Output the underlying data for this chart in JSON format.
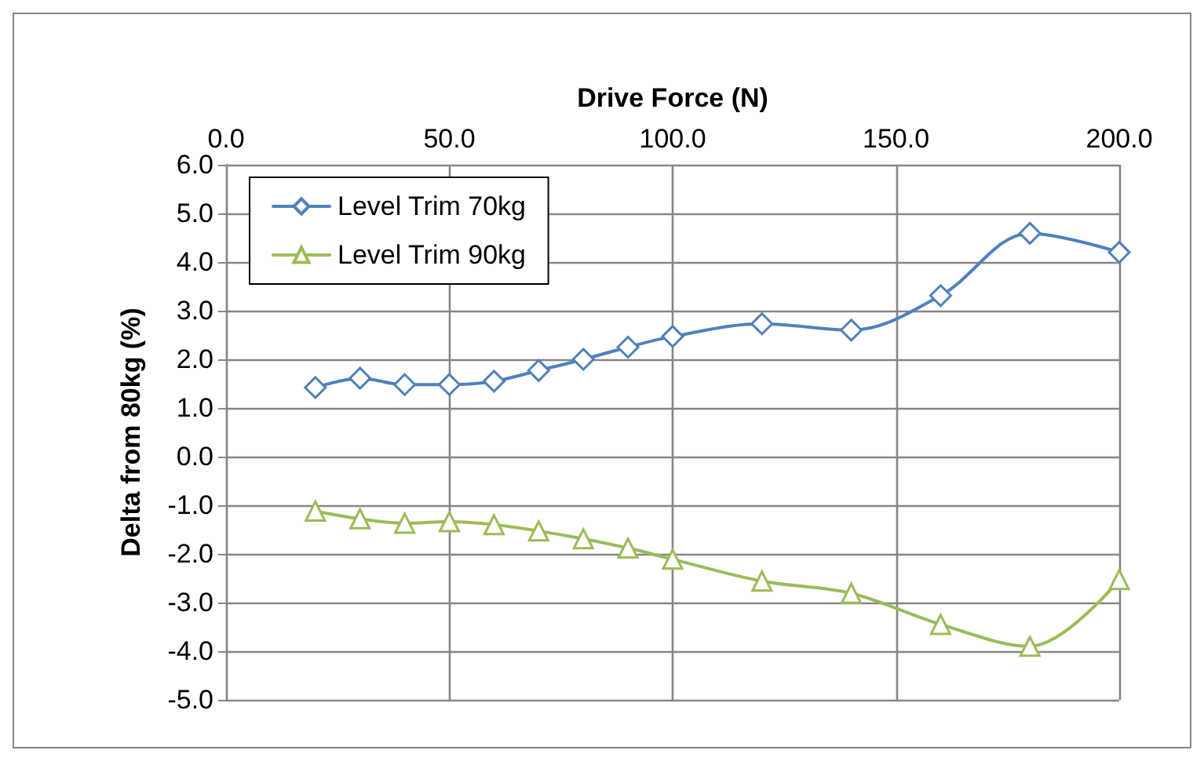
{
  "chart_data": {
    "type": "line",
    "xlabel": "Drive Force (N)",
    "ylabel": "Delta from 80kg (%)",
    "x": [
      20,
      30,
      40,
      50,
      60,
      70,
      80,
      90,
      100,
      120,
      140,
      160,
      180,
      200
    ],
    "series": [
      {
        "name": "Level Trim 70kg",
        "color": "#4f81bd",
        "marker": "diamond",
        "values": [
          1.42,
          1.61,
          1.48,
          1.48,
          1.55,
          1.77,
          2.0,
          2.25,
          2.47,
          2.73,
          2.6,
          3.31,
          4.59,
          4.2
        ]
      },
      {
        "name": "Level Trim 90kg",
        "color": "#9bbb59",
        "marker": "triangle",
        "values": [
          -1.12,
          -1.28,
          -1.37,
          -1.34,
          -1.4,
          -1.53,
          -1.69,
          -1.88,
          -2.11,
          -2.56,
          -2.81,
          -3.45,
          -3.9,
          -2.53
        ]
      }
    ],
    "xlim": [
      0,
      200
    ],
    "xticks": [
      {
        "value": 0,
        "label": "0.0"
      },
      {
        "value": 50,
        "label": "50.0"
      },
      {
        "value": 100,
        "label": "100.0"
      },
      {
        "value": 150,
        "label": "150.0"
      },
      {
        "value": 200,
        "label": "200.0"
      }
    ],
    "ylim": [
      -5,
      6
    ],
    "yticks": [
      {
        "value": -5,
        "label": "-5.0"
      },
      {
        "value": -4,
        "label": "-4.0"
      },
      {
        "value": -3,
        "label": "-3.0"
      },
      {
        "value": -2,
        "label": "-2.0"
      },
      {
        "value": -1,
        "label": "-1.0"
      },
      {
        "value": 0,
        "label": "0.0"
      },
      {
        "value": 1,
        "label": "1.0"
      },
      {
        "value": 2,
        "label": "2.0"
      },
      {
        "value": 3,
        "label": "3.0"
      },
      {
        "value": 4,
        "label": "4.0"
      },
      {
        "value": 5,
        "label": "5.0"
      },
      {
        "value": 6,
        "label": "6.0"
      }
    ],
    "grid": true,
    "legend": "top left",
    "line_style": "solid"
  }
}
